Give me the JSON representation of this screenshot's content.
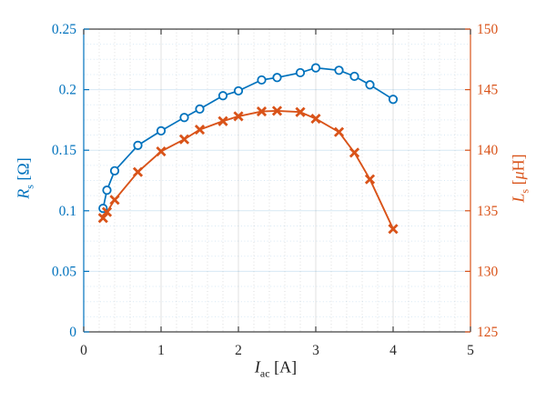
{
  "chart_data": {
    "type": "line",
    "title": "",
    "xlabel": {
      "symbol": "I",
      "sub": "ac",
      "unit": "[A]"
    },
    "ylabel_left": {
      "symbol": "R",
      "sub": "s",
      "unit": "[Ω]"
    },
    "ylabel_right": {
      "symbol": "L",
      "sub": "s",
      "unit_open": "[",
      "unit_mu": "μ",
      "unit_rest": "H]"
    },
    "xlim": [
      0,
      5
    ],
    "ylim_left": [
      0,
      0.25
    ],
    "ylim_right": [
      125,
      150
    ],
    "x_tick_labels": [
      "0",
      "1",
      "2",
      "3",
      "4",
      "5"
    ],
    "y_left_tick_labels": [
      "0",
      "0.05",
      "0.1",
      "0.15",
      "0.2",
      "0.25"
    ],
    "y_right_tick_labels": [
      "125",
      "130",
      "135",
      "140",
      "145",
      "150"
    ],
    "grid": {
      "major": true,
      "minor": true,
      "x_minor_step": 0.2,
      "y_minor_step_left": 0.0125
    },
    "legend": "none",
    "x": [
      0.25,
      0.3,
      0.4,
      0.7,
      1.0,
      1.3,
      1.5,
      1.8,
      2.0,
      2.3,
      2.5,
      2.8,
      3.0,
      3.3,
      3.5,
      3.7,
      4.0
    ],
    "series": [
      {
        "name": "Rs",
        "axis": "left",
        "marker": "circle",
        "color": "#0072BD",
        "values": [
          0.102,
          0.117,
          0.133,
          0.154,
          0.166,
          0.177,
          0.184,
          0.195,
          0.199,
          0.208,
          0.21,
          0.214,
          0.218,
          0.216,
          0.211,
          0.204,
          0.192
        ]
      },
      {
        "name": "Ls",
        "axis": "right",
        "marker": "x",
        "color": "#D95319",
        "values": [
          134.4,
          134.9,
          135.9,
          138.2,
          139.9,
          140.9,
          141.7,
          142.4,
          142.8,
          143.2,
          143.25,
          143.15,
          142.6,
          141.5,
          139.8,
          137.6,
          133.5
        ]
      }
    ]
  },
  "colors": {
    "left_axis": "#0072BD",
    "right_axis": "#D95319",
    "frame": "#404040",
    "x_tick_label": "#262626",
    "major_grid_x": "rgba(64,64,64,0.16)",
    "major_grid_y": "rgba(0,114,189,0.16)",
    "minor_grid_x": "rgba(64,64,64,0.18)",
    "minor_grid_y": "rgba(0,114,189,0.16)",
    "background": "#ffffff"
  }
}
